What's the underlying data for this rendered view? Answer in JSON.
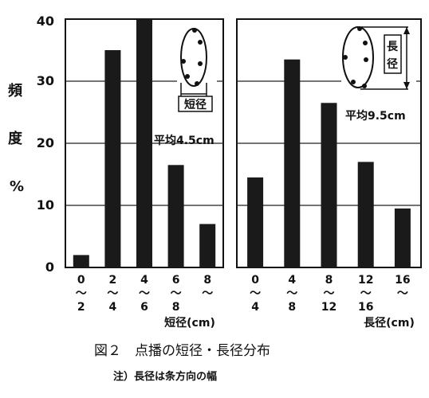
{
  "figure": {
    "caption": "図２　点播の短径・長径分布",
    "note": "注）長径は条方向の幅",
    "ylabel_chars": [
      "頻",
      "度",
      "%"
    ]
  },
  "chart_data": [
    {
      "type": "bar",
      "categories": [
        [
          "0",
          "〜",
          "2"
        ],
        [
          "2",
          "〜",
          "4"
        ],
        [
          "4",
          "〜",
          "6"
        ],
        [
          "6",
          "〜",
          "8"
        ],
        [
          "8",
          "〜",
          ""
        ]
      ],
      "values": [
        2,
        35,
        40,
        16.5,
        7
      ],
      "yticks": [
        "0",
        "10",
        "20",
        "30",
        "40"
      ],
      "ylim": [
        0,
        40
      ],
      "xlabel": "短径(cm)",
      "annotation": "平均4.5cm",
      "inset_label": "短径",
      "grid": "horizontal"
    },
    {
      "type": "bar",
      "categories": [
        [
          "0",
          "〜",
          "4"
        ],
        [
          "4",
          "〜",
          "8"
        ],
        [
          "8",
          "〜",
          "12"
        ],
        [
          "12",
          "〜",
          "16"
        ],
        [
          "16",
          "〜",
          ""
        ]
      ],
      "values": [
        14.5,
        33.5,
        26.5,
        17,
        9.5
      ],
      "ylim": [
        0,
        40
      ],
      "xlabel": "長径(cm)",
      "annotation": "平均9.5cm",
      "inset_label": [
        "長",
        "径"
      ],
      "grid": "horizontal"
    }
  ]
}
